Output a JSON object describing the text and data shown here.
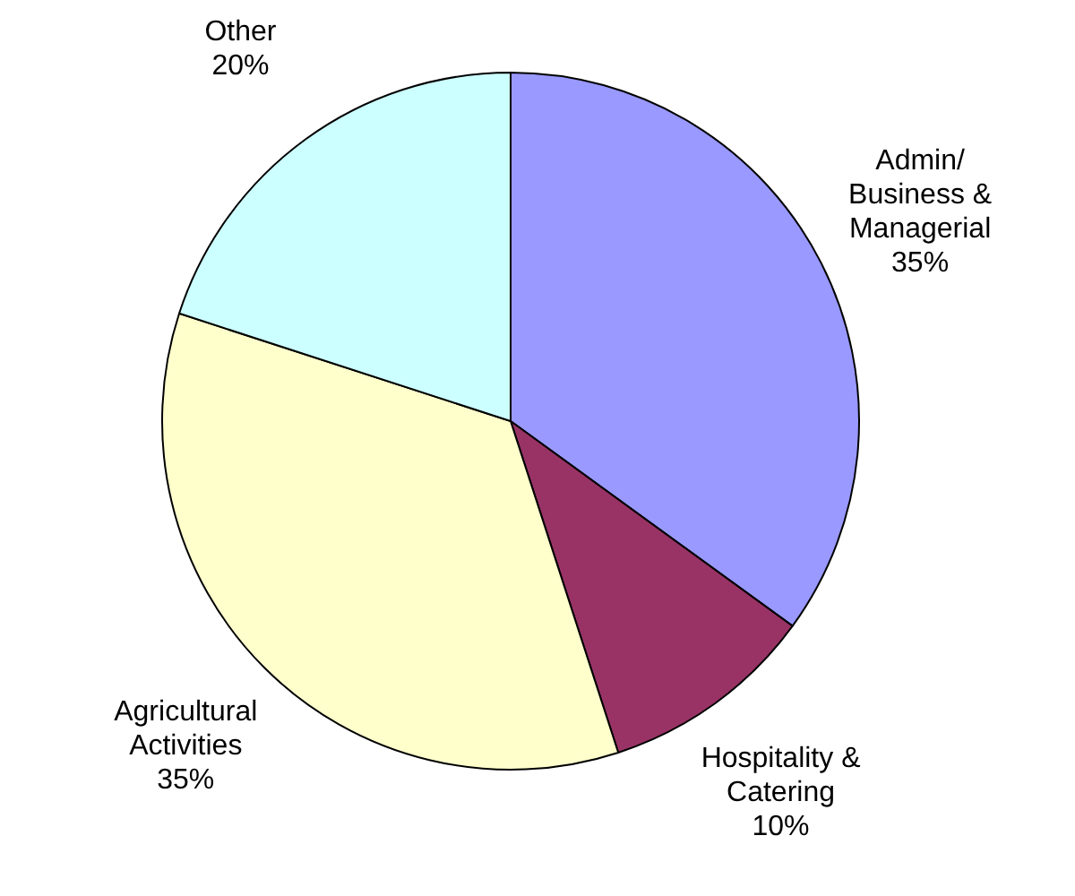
{
  "chart_data": {
    "type": "pie",
    "categories": [
      "Admin/ Business & Managerial",
      "Hospitality & Catering",
      "Agricultural Activities",
      "Other"
    ],
    "values": [
      35,
      10,
      35,
      20
    ],
    "value_labels": [
      "35%",
      "10%",
      "35%",
      "20%"
    ],
    "colors": [
      "#9999ff",
      "#993366",
      "#ffffcc",
      "#ccffff"
    ],
    "legend": false
  }
}
